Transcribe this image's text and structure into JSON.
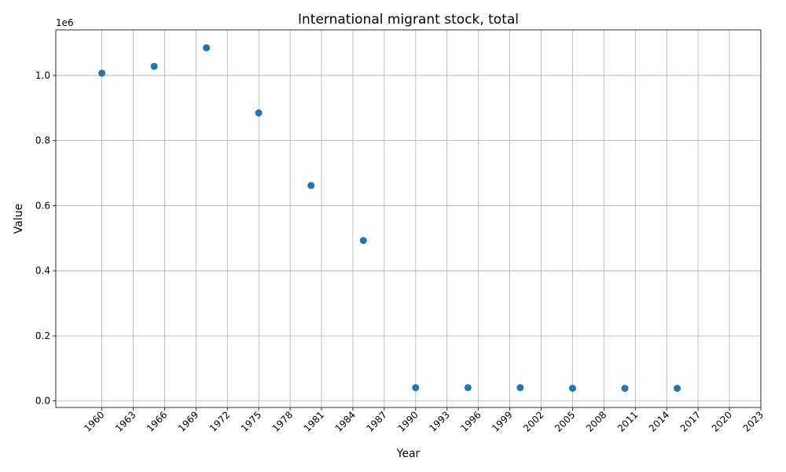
{
  "chart_data": {
    "type": "scatter",
    "title": "International migrant stock, total",
    "xlabel": "Year",
    "ylabel": "Value",
    "y_offset_label": "1e6",
    "xlim": [
      1955.6,
      2023
    ],
    "ylim": [
      -20000,
      1140000
    ],
    "x_ticks": [
      1960,
      1963,
      1966,
      1969,
      1972,
      1975,
      1978,
      1981,
      1984,
      1987,
      1990,
      1993,
      1996,
      1999,
      2002,
      2005,
      2008,
      2011,
      2014,
      2017,
      2020,
      2023
    ],
    "y_ticks": [
      0.0,
      0.2,
      0.4,
      0.6,
      0.8,
      1.0
    ],
    "y_tick_scale": 1000000,
    "grid": true,
    "marker_color": "#1f77b4",
    "points": [
      {
        "x": 1960,
        "y": 1007000
      },
      {
        "x": 1965,
        "y": 1028000
      },
      {
        "x": 1970,
        "y": 1085000
      },
      {
        "x": 1975,
        "y": 885000
      },
      {
        "x": 1980,
        "y": 662000
      },
      {
        "x": 1985,
        "y": 493000
      },
      {
        "x": 1990,
        "y": 41000
      },
      {
        "x": 1995,
        "y": 41000
      },
      {
        "x": 2000,
        "y": 41000
      },
      {
        "x": 2005,
        "y": 39000
      },
      {
        "x": 2010,
        "y": 39000
      },
      {
        "x": 2015,
        "y": 39000
      }
    ]
  }
}
